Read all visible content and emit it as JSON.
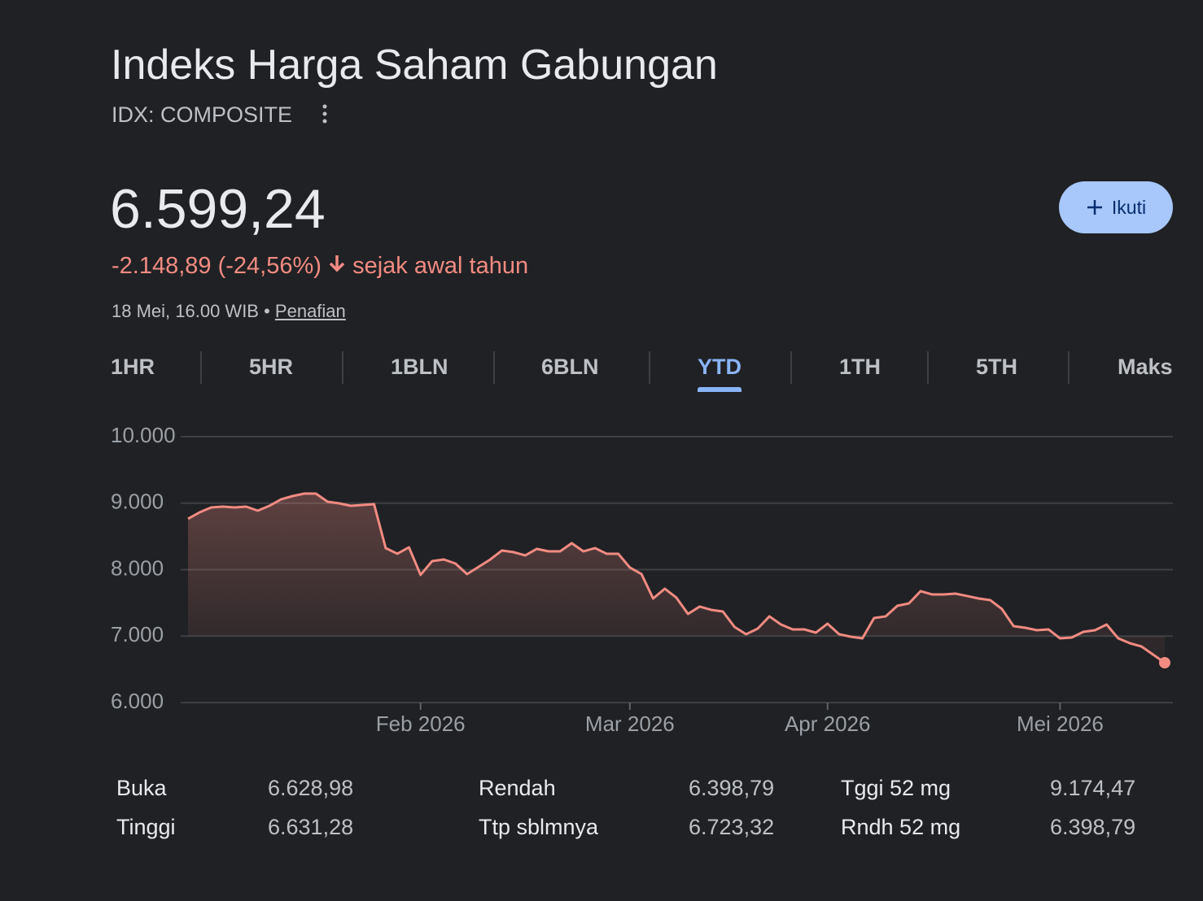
{
  "header": {
    "title": "Indeks Harga Saham Gabungan",
    "symbol": "IDX: COMPOSITE",
    "price": "6.599,24",
    "change": "-2.148,89 (-24,56%)",
    "change_period": "sejak awal tahun",
    "timestamp": "18 Mei, 16.00 WIB",
    "disclaimer": "Penafian",
    "follow_button": "Ikuti"
  },
  "tabs": {
    "items": [
      "1HR",
      "5HR",
      "1BLN",
      "6BLN",
      "YTD",
      "1TH",
      "5TH",
      "Maks"
    ],
    "active": 4
  },
  "chart_data": {
    "type": "line",
    "color": "#f28b82",
    "grid": true,
    "ylim": [
      6000,
      10000
    ],
    "yticks": [
      {
        "value": 10000,
        "label": "10.000"
      },
      {
        "value": 9000,
        "label": "9.000"
      },
      {
        "value": 8000,
        "label": "8.000"
      },
      {
        "value": 7000,
        "label": "7.000"
      },
      {
        "value": 6000,
        "label": "6.000"
      }
    ],
    "categories": [
      null,
      null,
      null,
      null,
      null,
      null,
      null,
      null,
      null,
      null,
      null,
      null,
      null,
      null,
      null,
      null,
      null,
      null,
      null,
      null,
      "Feb 2026",
      null,
      null,
      null,
      null,
      null,
      null,
      null,
      null,
      null,
      null,
      null,
      null,
      null,
      null,
      null,
      null,
      null,
      "Mar 2026",
      null,
      null,
      null,
      null,
      null,
      null,
      null,
      null,
      null,
      null,
      null,
      null,
      null,
      null,
      null,
      null,
      "Apr 2026",
      null,
      null,
      null,
      null,
      null,
      null,
      null,
      null,
      null,
      null,
      null,
      null,
      null,
      null,
      null,
      null,
      null,
      null,
      null,
      "Mei 2026",
      null,
      null,
      null,
      null,
      null,
      null,
      null,
      null,
      null
    ],
    "values": [
      8765,
      8862,
      8936,
      8948,
      8936,
      8948,
      8887,
      8960,
      9058,
      9107,
      9144,
      9144,
      9021,
      8997,
      8960,
      8973,
      8985,
      8324,
      8239,
      8336,
      7921,
      8129,
      8153,
      8092,
      7933,
      8043,
      8153,
      8288,
      8263,
      8214,
      8312,
      8275,
      8275,
      8398,
      8275,
      8324,
      8239,
      8239,
      8031,
      7933,
      7566,
      7713,
      7578,
      7333,
      7444,
      7395,
      7370,
      7138,
      7028,
      7113,
      7297,
      7174,
      7101,
      7101,
      7052,
      7187,
      7028,
      6991,
      6966,
      7272,
      7297,
      7456,
      7492,
      7676,
      7627,
      7627,
      7639,
      7603,
      7566,
      7541,
      7407,
      7150,
      7125,
      7089,
      7101,
      6966,
      6979,
      7064,
      7089,
      7174,
      6966,
      6893,
      6844,
      6722,
      6599.24
    ]
  },
  "stats": {
    "rows": [
      [
        [
          "Buka",
          "6.628,98"
        ],
        [
          "Rendah",
          "6.398,79"
        ],
        [
          "Tggi 52 mg",
          "9.174,47"
        ]
      ],
      [
        [
          "Tinggi",
          "6.631,28"
        ],
        [
          "Ttp sblmnya",
          "6.723,32"
        ],
        [
          "Rndh 52 mg",
          "6.398,79"
        ]
      ]
    ]
  }
}
